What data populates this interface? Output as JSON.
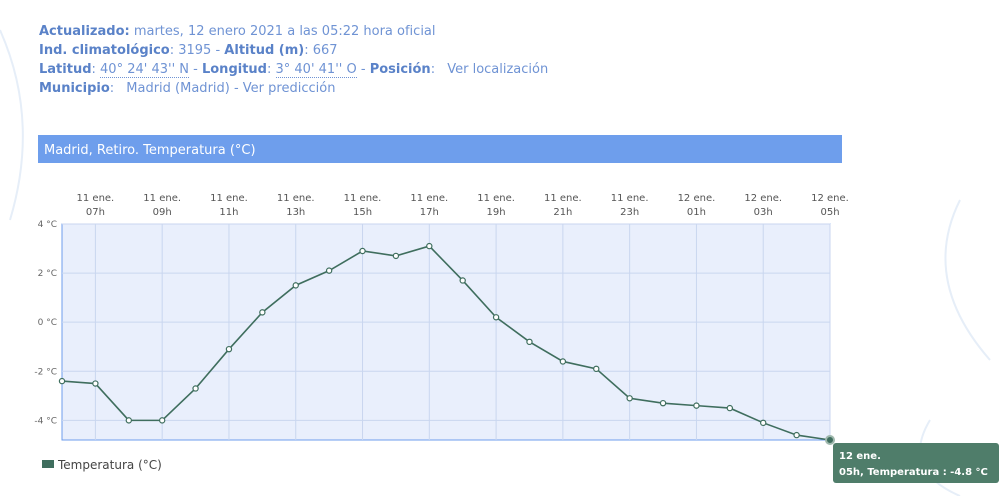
{
  "header": {
    "lines": [
      [
        {
          "text": "Actualizado:",
          "style": "bold"
        },
        {
          "text": " martes, 12 enero 2021 a las 05:22 hora oficial",
          "style": "plain"
        }
      ],
      [
        {
          "text": "Ind. climatológico",
          "style": "bold"
        },
        {
          "text": ": 3195 - ",
          "style": "plain"
        },
        {
          "text": "Altitud (m)",
          "style": "bold"
        },
        {
          "text": ": 667",
          "style": "plain"
        }
      ],
      [
        {
          "text": "Latitud",
          "style": "bold"
        },
        {
          "text": ": ",
          "style": "plain"
        },
        {
          "text": "40° 24' 43'' N",
          "style": "dotted"
        },
        {
          "text": " - ",
          "style": "plain"
        },
        {
          "text": "Longitud",
          "style": "bold"
        },
        {
          "text": ": ",
          "style": "plain"
        },
        {
          "text": "3° 40' 41'' O",
          "style": "dotted"
        },
        {
          "text": " - ",
          "style": "plain"
        },
        {
          "text": "Posición",
          "style": "bold"
        },
        {
          "text": ": ",
          "style": "plain"
        },
        {
          "text": "Ver localización",
          "style": "link"
        }
      ],
      [
        {
          "text": "Municipio",
          "style": "bold"
        },
        {
          "text": ": ",
          "style": "plain"
        },
        {
          "text": "Madrid (Madrid) - Ver predicción",
          "style": "link"
        }
      ]
    ]
  },
  "chart_data": {
    "type": "line",
    "title": "Madrid, Retiro. Temperatura (°C)",
    "categories": [
      null,
      {
        "date": "11 ene.",
        "hour": "07h"
      },
      null,
      {
        "date": "11 ene.",
        "hour": "09h"
      },
      null,
      {
        "date": "11 ene.",
        "hour": "11h"
      },
      null,
      {
        "date": "11 ene.",
        "hour": "13h"
      },
      null,
      {
        "date": "11 ene.",
        "hour": "15h"
      },
      null,
      {
        "date": "11 ene.",
        "hour": "17h"
      },
      null,
      {
        "date": "11 ene.",
        "hour": "19h"
      },
      null,
      {
        "date": "11 ene.",
        "hour": "21h"
      },
      null,
      {
        "date": "11 ene.",
        "hour": "23h"
      },
      null,
      {
        "date": "12 ene.",
        "hour": "01h"
      },
      null,
      {
        "date": "12 ene.",
        "hour": "03h"
      },
      null,
      {
        "date": "12 ene.",
        "hour": "05h"
      }
    ],
    "series": [
      {
        "name": "Temperatura (°C)",
        "color": "#3f6e5e",
        "values": [
          -2.4,
          -2.5,
          -4.0,
          -4.0,
          -2.7,
          -1.1,
          0.4,
          1.5,
          2.1,
          2.9,
          2.7,
          3.1,
          1.7,
          0.2,
          -0.8,
          -1.6,
          -1.9,
          -3.1,
          -3.3,
          -3.4,
          -3.5,
          -4.1,
          -4.6,
          -4.8
        ]
      }
    ],
    "ylim": [
      -4.8,
      4
    ],
    "yticks": [
      {
        "value": -4,
        "label": "-4 °C"
      },
      {
        "value": -2,
        "label": "-2 °C"
      },
      {
        "value": 0,
        "label": "0 °C"
      },
      {
        "value": 2,
        "label": "2 °C"
      },
      {
        "value": 4,
        "label": "4 °C"
      }
    ],
    "grid": true,
    "tooltip": {
      "title": "12 ene.",
      "text": "05h, Temperatura : -4.8 °C"
    }
  }
}
